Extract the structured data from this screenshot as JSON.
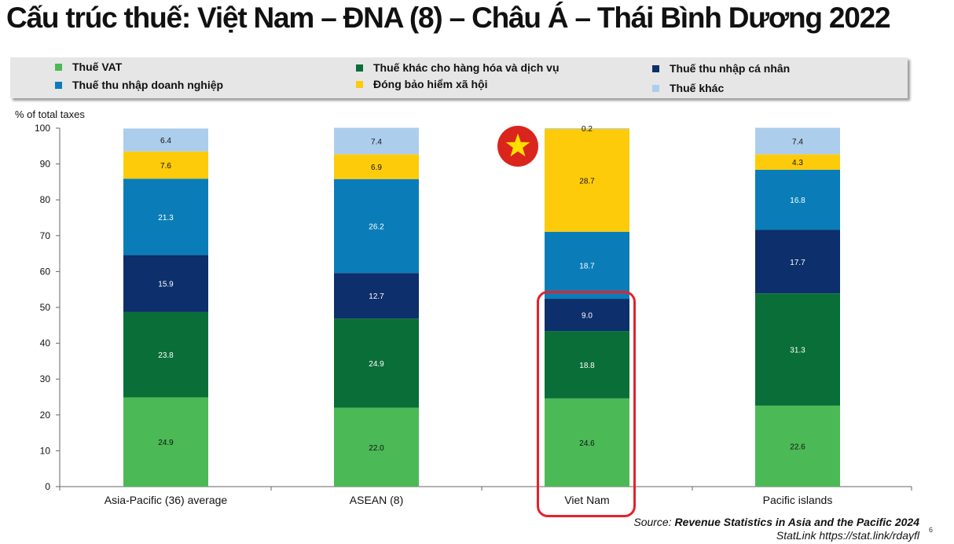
{
  "page": {
    "title": "Cấu trúc thuế: Việt Nam – ĐNA (8) – Châu Á – Thái Bình Dương 2022",
    "source_prefix": "Source: ",
    "source_title": "Revenue Statistics in Asia and the Pacific 2024",
    "statlink": "StatLink https://stat.link/rdayfl",
    "page_number": "6",
    "flag_icon": "vietnam-flag-icon",
    "highlight_color": "#e8202a"
  },
  "chart_data": {
    "type": "bar",
    "stacked": true,
    "ylabel": "% of total taxes",
    "ylim": [
      0,
      100
    ],
    "yticks": [
      0,
      10,
      20,
      30,
      40,
      50,
      60,
      70,
      80,
      90,
      100
    ],
    "categories": [
      "Asia-Pacific (36) average",
      "ASEAN (8)",
      "Viet Nam",
      "Pacific islands"
    ],
    "legend_position": "top",
    "series": [
      {
        "name": "Thuế VAT",
        "color": "#4cb957",
        "values": [
          24.9,
          22.0,
          24.6,
          22.6
        ]
      },
      {
        "name": "Thuế khác cho hàng hóa và dịch vụ",
        "color": "#0a6e38",
        "values": [
          23.8,
          24.9,
          18.8,
          31.3
        ]
      },
      {
        "name": "Thuế thu nhập cá nhân",
        "color": "#0d2f6b",
        "values": [
          15.9,
          12.7,
          9.0,
          17.7
        ]
      },
      {
        "name": "Thuế thu nhập doanh nghiệp",
        "color": "#0a7db8",
        "values": [
          21.3,
          26.2,
          18.7,
          16.8
        ]
      },
      {
        "name": "Đóng bảo hiểm xã hội",
        "color": "#fecb0a",
        "values": [
          7.6,
          6.9,
          28.7,
          4.3
        ]
      },
      {
        "name": "Thuế khác",
        "color": "#adcdec",
        "values": [
          6.4,
          7.4,
          0.2,
          7.4
        ]
      }
    ],
    "data_labels": [
      [
        "24.9",
        "23.8",
        "15.9",
        "21.3",
        "7.6",
        "6.4"
      ],
      [
        "22.0",
        "24.9",
        "12.7",
        "26.2",
        "6.9",
        "7.4"
      ],
      [
        "24.6",
        "18.8",
        "9.0",
        "18.7",
        "28.7",
        "0.2"
      ],
      [
        "22.6",
        "31.3",
        "17.7",
        "16.8",
        "4.3",
        "7.4"
      ]
    ],
    "grid": false
  }
}
